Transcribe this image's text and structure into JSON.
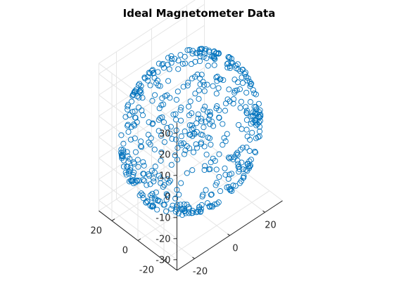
{
  "chart_data": {
    "type": "scatter",
    "dimension": "3d",
    "title": "Ideal Magnetometer Data",
    "xlabel": "",
    "ylabel": "",
    "zlabel": "",
    "marker": "circle",
    "marker_color": "#0072bd",
    "grid": true,
    "view": {
      "azimuth_deg": -37.5,
      "elevation_deg": 30
    },
    "xlim": [
      -30,
      30
    ],
    "ylim": [
      -30,
      30
    ],
    "zlim": [
      -35,
      35
    ],
    "x_ticks": [
      "-20",
      "0",
      "20"
    ],
    "x_tick_values": [
      -20,
      0,
      20
    ],
    "y_ticks": [
      "-20",
      "0",
      "20"
    ],
    "y_tick_values": [
      -20,
      0,
      20
    ],
    "z_ticks": [
      "-30",
      "-20",
      "-10",
      "0",
      "10",
      "20",
      "30"
    ],
    "z_tick_values": [
      -30,
      -20,
      -10,
      0,
      10,
      20,
      30
    ],
    "series": [
      {
        "shape": "sphere",
        "center": [
          0,
          0,
          0
        ],
        "radius": 32,
        "n_points": 550
      }
    ]
  }
}
